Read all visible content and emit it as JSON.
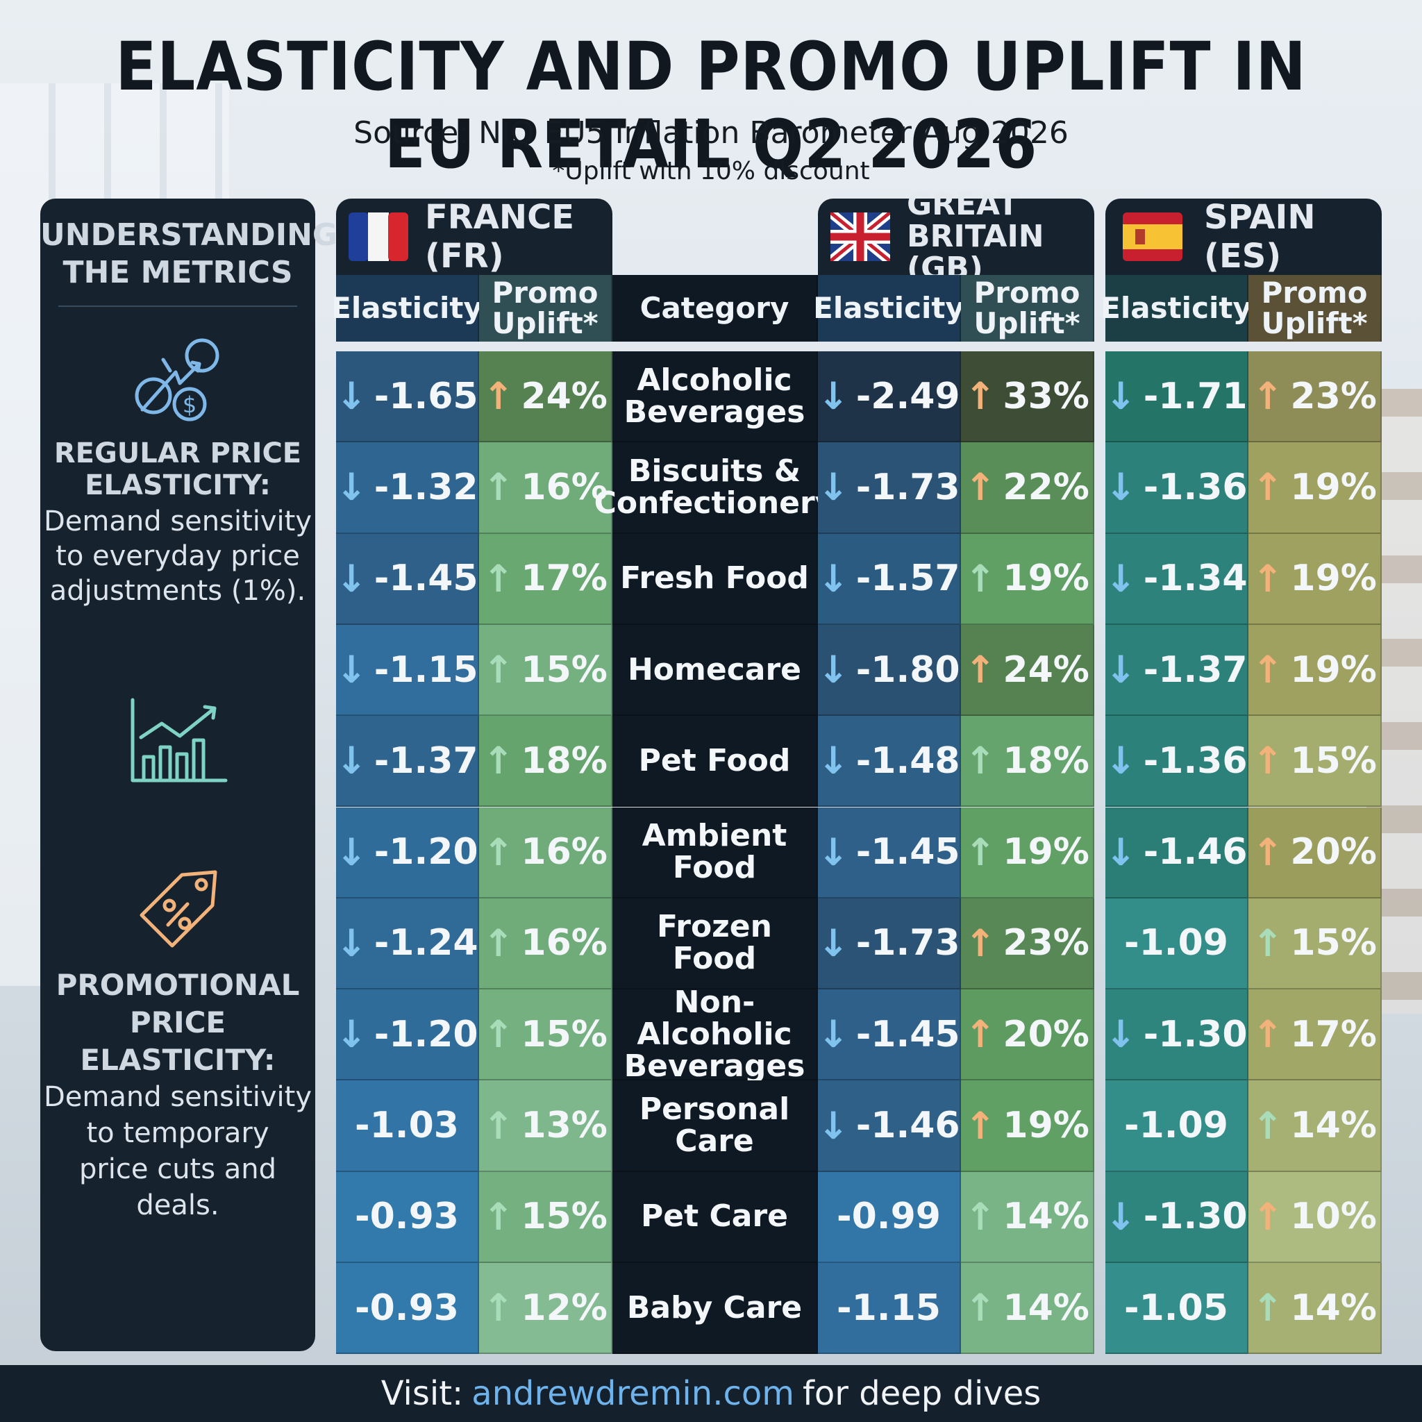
{
  "title": "ELASTICITY AND PROMO UPLIFT IN EU RETAIL Q2 2026",
  "source": "Source: NIQ EU5 Inflation Barometer Aug 2026",
  "footnote": "*Uplift with 10% discount",
  "metrics_panel": {
    "heading_line1": "UNDERSTANDING",
    "heading_line2": "THE METRICS",
    "regular_title_line1": "REGULAR PRICE",
    "regular_title_line2": "ELASTICITY:",
    "regular_desc_line1": "Demand sensitivity",
    "regular_desc_line2": "to everyday price",
    "regular_desc_line3": "adjustments (1%).",
    "promo_title_line1": "PROMOTIONAL",
    "promo_title_line2": "PRICE",
    "promo_title_line3": "ELASTICITY:",
    "promo_desc_line1": "Demand sensitivity",
    "promo_desc_line2": "to temporary",
    "promo_desc_line3": "price cuts and",
    "promo_desc_line4": "deals.",
    "icons": [
      "regular-elasticity-icon",
      "growth-chart-icon",
      "percent-tag-icon"
    ]
  },
  "headers": {
    "elasticity": "Elasticity",
    "promo_line1": "Promo",
    "promo_line2": "Uplift*",
    "category": "Category"
  },
  "countries": {
    "fr": {
      "name": "FRANCE (FR)"
    },
    "gb": {
      "name_line1": "GREAT",
      "name_line2": "BRITAIN (GB)"
    },
    "es": {
      "name": "SPAIN (ES)"
    }
  },
  "colors": {
    "arrow_down": "#7fc3ee",
    "arrow_up_orange": "#f2b27a",
    "arrow_up_green": "#a9dcb9",
    "panel": "#16222e"
  },
  "chart_data": {
    "type": "table",
    "categories": [
      "Alcoholic Beverages",
      "Biscuits & Confectionery",
      "Fresh Food",
      "Homecare",
      "Pet Food",
      "Ambient Food",
      "Frozen Food",
      "Non-Alcoholic Beverages",
      "Personal Care",
      "Pet Care",
      "Baby Care"
    ],
    "category_lines": [
      [
        "Alcoholic",
        "Beverages"
      ],
      [
        "Biscuits &",
        "Confectionery"
      ],
      [
        "Fresh Food"
      ],
      [
        "Homecare"
      ],
      [
        "Pet Food"
      ],
      [
        "Ambient",
        "Food"
      ],
      [
        "Frozen",
        "Food"
      ],
      [
        "Non-Alcoholic",
        "Beverages"
      ],
      [
        "Personal",
        "Care"
      ],
      [
        "Pet Care"
      ],
      [
        "Baby Care"
      ]
    ],
    "series": [
      {
        "country": "FR",
        "elasticity": [
          "-1.65",
          "-1.32",
          "-1.45",
          "-1.15",
          "-1.37",
          "-1.20",
          "-1.24",
          "-1.20",
          "-1.03",
          "-0.93",
          "-0.93"
        ],
        "elasticity_arrow": [
          true,
          true,
          true,
          true,
          true,
          true,
          true,
          true,
          false,
          false,
          false
        ],
        "uplift": [
          "24%",
          "16%",
          "17%",
          "15%",
          "18%",
          "16%",
          "16%",
          "15%",
          "13%",
          "15%",
          "12%"
        ],
        "uplift_arrow": [
          "orange",
          "green",
          "green",
          "green",
          "green",
          "green",
          "green",
          "green",
          "green",
          "green",
          "green"
        ]
      },
      {
        "country": "GB",
        "elasticity": [
          "-2.49",
          "-1.73",
          "-1.57",
          "-1.80",
          "-1.48",
          "-1.45",
          "-1.73",
          "-1.45",
          "-1.46",
          "-0.99",
          "-1.15"
        ],
        "elasticity_arrow": [
          true,
          true,
          true,
          true,
          true,
          true,
          true,
          true,
          true,
          false,
          false
        ],
        "uplift": [
          "33%",
          "22%",
          "19%",
          "24%",
          "18%",
          "19%",
          "23%",
          "20%",
          "19%",
          "14%",
          "14%"
        ],
        "uplift_arrow": [
          "orange",
          "orange",
          "green",
          "orange",
          "green",
          "green",
          "orange",
          "orange",
          "orange",
          "green",
          "green"
        ]
      },
      {
        "country": "ES",
        "elasticity": [
          "-1.71",
          "-1.36",
          "-1.34",
          "-1.37",
          "-1.36",
          "-1.46",
          "-1.09",
          "-1.30",
          "-1.09",
          "-1.30",
          "-1.05"
        ],
        "elasticity_arrow": [
          true,
          true,
          true,
          true,
          true,
          true,
          false,
          true,
          false,
          true,
          false
        ],
        "uplift": [
          "23%",
          "19%",
          "19%",
          "19%",
          "15%",
          "20%",
          "15%",
          "17%",
          "14%",
          "10%",
          "14%"
        ],
        "uplift_arrow": [
          "orange",
          "orange",
          "orange",
          "orange",
          "orange",
          "orange",
          "green",
          "orange",
          "green",
          "orange",
          "green"
        ]
      }
    ]
  },
  "footer": {
    "prefix": "Visit:",
    "link": "andrewdremin.com",
    "suffix": "for deep dives"
  }
}
